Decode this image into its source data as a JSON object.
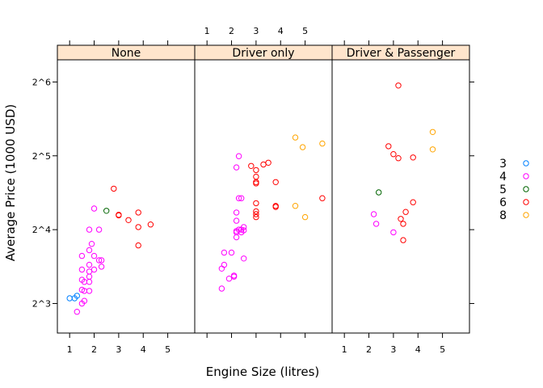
{
  "chart_data": {
    "type": "scatter",
    "xlabel": "Engine Size (litres)",
    "ylabel": "Average Price (1000 USD)",
    "xlim": [
      0.5,
      6.1
    ],
    "ylim_log2": [
      2.6,
      6.3
    ],
    "x_ticks": [
      "1",
      "2",
      "3",
      "4",
      "5"
    ],
    "x_tick_values": [
      1,
      2,
      3,
      4,
      5
    ],
    "y_ticks": [
      "2^3",
      "2^4",
      "2^5",
      "2^6"
    ],
    "y_tick_values_log2": [
      3,
      4,
      5,
      6
    ],
    "panels": [
      "None",
      "Driver only",
      "Driver & Passenger"
    ],
    "legend": {
      "position": "right",
      "entries": [
        {
          "label": "3",
          "color": "#0080ff"
        },
        {
          "label": "4",
          "color": "#ff00ff"
        },
        {
          "label": "5",
          "color": "#006400"
        },
        {
          "label": "6",
          "color": "#ff0000"
        },
        {
          "label": "8",
          "color": "#ffa500"
        }
      ]
    },
    "series": [
      {
        "panel": "None",
        "cylinders": "3",
        "points": [
          [
            1.0,
            8.4
          ],
          [
            1.2,
            8.4
          ],
          [
            1.3,
            8.6
          ]
        ]
      },
      {
        "panel": "None",
        "cylinders": "4",
        "points": [
          [
            1.3,
            7.4
          ],
          [
            1.5,
            8.0
          ],
          [
            1.5,
            9.1
          ],
          [
            1.5,
            10.0
          ],
          [
            1.5,
            11.0
          ],
          [
            1.5,
            12.5
          ],
          [
            1.6,
            8.2
          ],
          [
            1.6,
            9.0
          ],
          [
            1.6,
            9.8
          ],
          [
            1.8,
            9.0
          ],
          [
            1.8,
            9.8
          ],
          [
            1.8,
            10.3
          ],
          [
            1.8,
            10.8
          ],
          [
            1.8,
            11.5
          ],
          [
            1.8,
            13.2
          ],
          [
            1.8,
            16.0
          ],
          [
            1.9,
            14.0
          ],
          [
            2.0,
            11.0
          ],
          [
            2.0,
            12.5
          ],
          [
            2.0,
            19.5
          ],
          [
            2.2,
            12.0
          ],
          [
            2.2,
            16.0
          ],
          [
            2.3,
            11.3
          ],
          [
            2.3,
            12.0
          ]
        ]
      },
      {
        "panel": "None",
        "cylinders": "5",
        "points": [
          [
            2.5,
            19.1
          ]
        ]
      },
      {
        "panel": "None",
        "cylinders": "6",
        "points": [
          [
            2.8,
            23.5
          ],
          [
            3.0,
            18.4
          ],
          [
            3.0,
            18.3
          ],
          [
            3.4,
            17.5
          ],
          [
            3.8,
            13.8
          ],
          [
            3.8,
            16.4
          ],
          [
            3.8,
            18.8
          ],
          [
            4.3,
            16.8
          ]
        ]
      },
      {
        "panel": "Driver only",
        "cylinders": "4",
        "points": [
          [
            1.6,
            9.2
          ],
          [
            1.6,
            11.1
          ],
          [
            1.7,
            11.5
          ],
          [
            1.7,
            12.9
          ],
          [
            1.9,
            10.1
          ],
          [
            2.0,
            12.9
          ],
          [
            2.1,
            10.3
          ],
          [
            2.1,
            10.4
          ],
          [
            2.2,
            14.9
          ],
          [
            2.2,
            15.8
          ],
          [
            2.2,
            17.4
          ],
          [
            2.2,
            18.8
          ],
          [
            2.2,
            28.7
          ],
          [
            2.2,
            15.6
          ],
          [
            2.3,
            31.9
          ],
          [
            2.3,
            21.5
          ],
          [
            2.3,
            16.0
          ],
          [
            2.4,
            21.5
          ],
          [
            2.4,
            16.0
          ],
          [
            2.4,
            15.6
          ],
          [
            2.5,
            16.4
          ],
          [
            2.5,
            15.9
          ],
          [
            2.5,
            12.2
          ]
        ]
      },
      {
        "panel": "Driver only",
        "cylinders": "6",
        "points": [
          [
            2.8,
            29.1
          ],
          [
            3.0,
            28.0
          ],
          [
            3.0,
            26.3
          ],
          [
            3.0,
            25.0
          ],
          [
            3.0,
            24.7
          ],
          [
            3.0,
            20.5
          ],
          [
            3.0,
            19.0
          ],
          [
            3.0,
            18.5
          ],
          [
            3.0,
            18.0
          ],
          [
            3.3,
            29.5
          ],
          [
            3.5,
            30.0
          ],
          [
            3.8,
            25.0
          ],
          [
            3.8,
            20.0
          ],
          [
            3.8,
            19.8
          ],
          [
            5.7,
            21.5
          ]
        ]
      },
      {
        "panel": "Driver only",
        "cylinders": "8",
        "points": [
          [
            4.6,
            38.0
          ],
          [
            4.6,
            20.0
          ],
          [
            4.9,
            34.7
          ],
          [
            5.0,
            18.0
          ],
          [
            5.7,
            35.9
          ]
        ]
      },
      {
        "panel": "Driver & Passenger",
        "cylinders": "4",
        "points": [
          [
            2.2,
            18.5
          ],
          [
            2.3,
            16.9
          ],
          [
            3.0,
            15.6
          ]
        ]
      },
      {
        "panel": "Driver & Passenger",
        "cylinders": "5",
        "points": [
          [
            2.4,
            22.7
          ]
        ]
      },
      {
        "panel": "Driver & Passenger",
        "cylinders": "6",
        "points": [
          [
            2.8,
            35.0
          ],
          [
            3.0,
            32.5
          ],
          [
            3.2,
            61.9
          ],
          [
            3.2,
            31.3
          ],
          [
            3.3,
            17.7
          ],
          [
            3.4,
            16.9
          ],
          [
            3.4,
            14.5
          ],
          [
            3.5,
            18.9
          ],
          [
            3.8,
            31.5
          ],
          [
            3.8,
            20.7
          ]
        ]
      },
      {
        "panel": "Driver & Passenger",
        "cylinders": "8",
        "points": [
          [
            4.6,
            40.0
          ],
          [
            4.6,
            34.0
          ]
        ]
      }
    ]
  }
}
